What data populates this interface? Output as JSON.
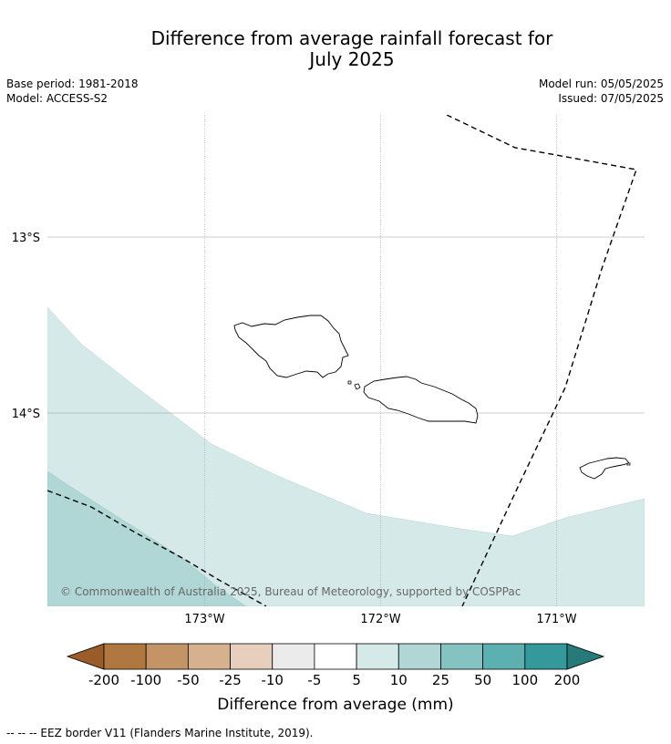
{
  "title_line1": "Difference from average rainfall forecast for",
  "title_line2": "July 2025",
  "base_period": "Base period: 1981-2018",
  "model": "Model: ACCESS-S2",
  "model_run": "Model run: 05/05/2025",
  "issued": "Issued: 07/05/2025",
  "lat_labels": [
    "13°S",
    "14°S"
  ],
  "lon_labels": [
    "173°W",
    "172°W",
    "171°W"
  ],
  "copyright": "© Commonwealth of Australia 2025, Bureau of Meteorology, supported by COSPPac",
  "colorbar": {
    "ticks": [
      "-200",
      "-100",
      "-50",
      "-25",
      "-10",
      "-5",
      "5",
      "10",
      "25",
      "50",
      "100",
      "200"
    ],
    "colors": [
      "#9a5c28",
      "#b07840",
      "#c49466",
      "#d6b190",
      "#e6cfbc",
      "#ebebeb",
      "#ffffff",
      "#d5eae8",
      "#b0d7d6",
      "#85c3c2",
      "#5cb0af",
      "#33999a",
      "#267a7a"
    ],
    "label": "Difference from average (mm)"
  },
  "footnote": "--  --  -- EEZ border V11 (Flanders Marine Institute, 2019)."
}
